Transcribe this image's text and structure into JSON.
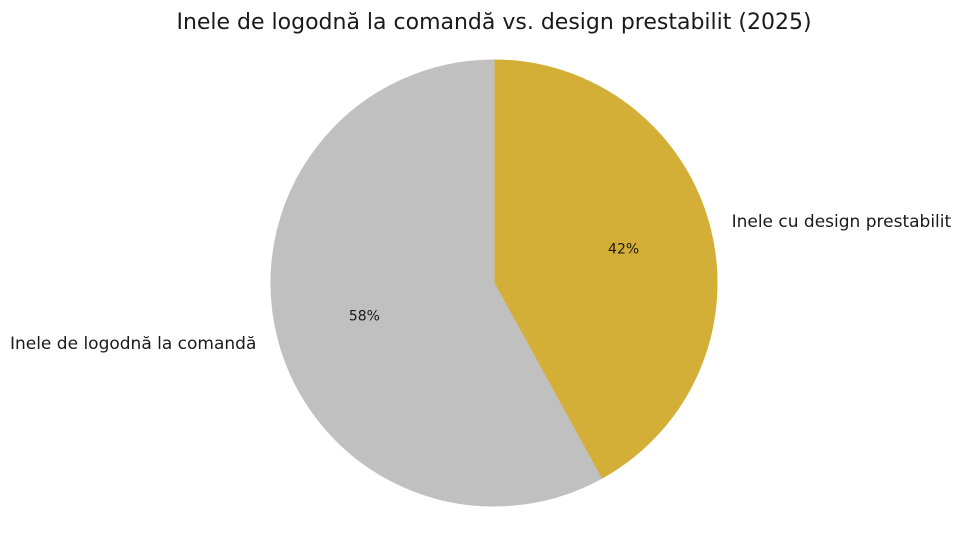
{
  "chart_data": {
    "type": "pie",
    "title": "Inele de logodnă la comandă vs. design prestabilit (2025)",
    "slices": [
      {
        "label": "Inele cu design prestabilit",
        "value": 42,
        "pct_label": "42%",
        "color": "#D4AF37"
      },
      {
        "label": "Inele de logodnă la comandă",
        "value": 58,
        "pct_label": "58%",
        "color": "#C0C0C0"
      }
    ],
    "start_angle": "top (12 o'clock)",
    "direction": "clockwise"
  }
}
